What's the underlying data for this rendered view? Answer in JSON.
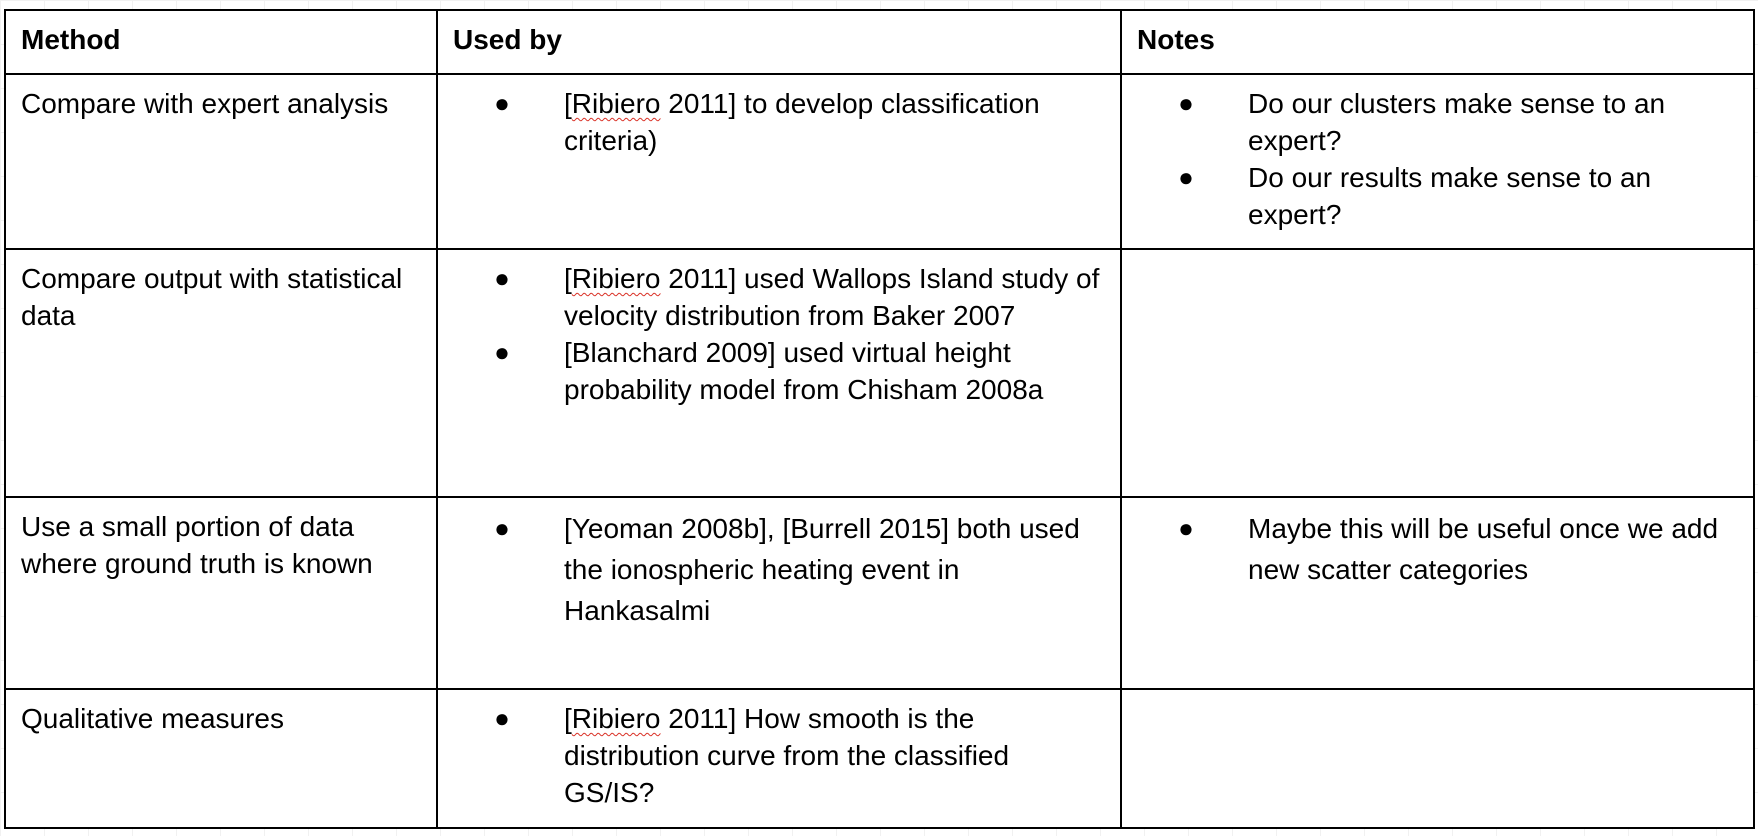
{
  "table": {
    "headers": [
      "Method",
      "Used by",
      "Notes"
    ],
    "rows": [
      {
        "method": "Compare with expert analysis",
        "used_by": [
          {
            "pre": "[",
            "mark": "Ribiero",
            "post": " 2011] to develop classification criteria)"
          }
        ],
        "notes": [
          "Do our clusters make sense to an expert?",
          "Do our results make sense to an expert?"
        ]
      },
      {
        "method": "Compare output with statistical data",
        "used_by": [
          {
            "pre": "[",
            "mark": "Ribiero",
            "post": " 2011] used Wallops Island study of velocity distribution from Baker 2007"
          },
          {
            "pre": "",
            "mark": "",
            "post": "[Blanchard 2009] used virtual height probability model from Chisham 2008a"
          }
        ],
        "notes": []
      },
      {
        "method": "Use a small portion of data where ground truth is known",
        "used_by": [
          {
            "pre": "",
            "mark": "",
            "post": "[Yeoman 2008b], [Burrell 2015] both used the ionospheric heating event in Hankasalmi"
          }
        ],
        "notes": [
          "Maybe this will be useful once we add new scatter categories"
        ]
      },
      {
        "method": "Qualitative measures",
        "used_by": [
          {
            "pre": "[",
            "mark": "Ribiero",
            "post": " 2011] How smooth is the distribution curve from the classified GS/IS?"
          }
        ],
        "notes": []
      }
    ],
    "bullet_glyph": "●",
    "spellcheck_underline_color": "#d93025"
  }
}
